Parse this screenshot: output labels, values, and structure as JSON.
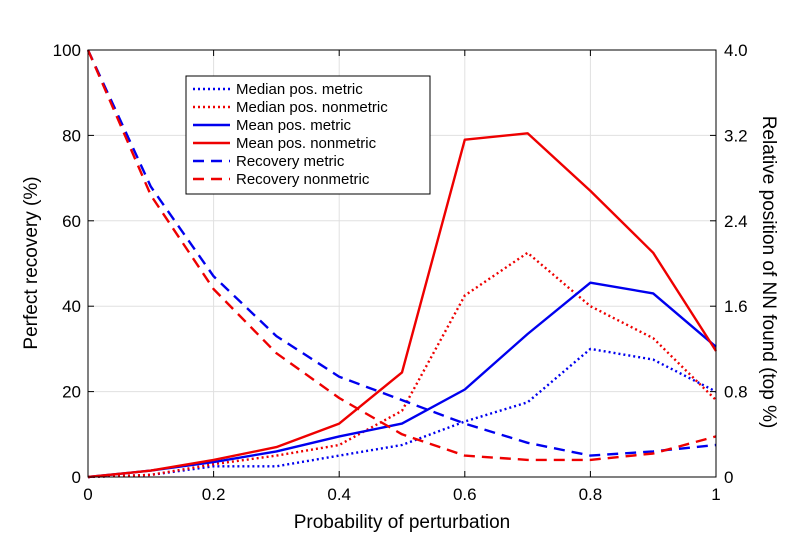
{
  "chart_data": {
    "type": "line",
    "title": "",
    "xlabel": "Probability of perturbation",
    "ylabel": "Perfect recovery (%)",
    "ylabel_right": "Relative position of NN found (top %)",
    "xlim": [
      0,
      1
    ],
    "ylim": [
      0,
      100
    ],
    "ylim_right": [
      0,
      4.0
    ],
    "grid": true,
    "legend_position": "top-left",
    "x_ticks": [
      "0",
      "0.2",
      "0.4",
      "0.6",
      "0.8",
      "1"
    ],
    "y_ticks": [
      "0",
      "20",
      "40",
      "60",
      "80",
      "100"
    ],
    "y_ticks_right": [
      "0",
      "0.8",
      "1.6",
      "2.4",
      "3.2",
      "4.0"
    ],
    "x": [
      0,
      0.1,
      0.2,
      0.3,
      0.4,
      0.5,
      0.6,
      0.7,
      0.8,
      0.9,
      1.0
    ],
    "series": [
      {
        "name": "Median pos. metric",
        "axis": "right",
        "color": "#0000ee",
        "style": "dotted",
        "values": [
          0,
          0.02,
          0.1,
          0.1,
          0.2,
          0.3,
          0.52,
          0.7,
          1.2,
          1.1,
          0.8
        ]
      },
      {
        "name": "Median pos. nonmetric",
        "axis": "right",
        "color": "#ee0000",
        "style": "dotted",
        "values": [
          0,
          0.02,
          0.12,
          0.2,
          0.3,
          0.62,
          1.7,
          2.1,
          1.6,
          1.3,
          0.72
        ]
      },
      {
        "name": "Mean pos. metric",
        "axis": "right",
        "color": "#0000ee",
        "style": "solid",
        "values": [
          0,
          0.06,
          0.14,
          0.24,
          0.38,
          0.5,
          0.82,
          1.34,
          1.82,
          1.72,
          1.22
        ]
      },
      {
        "name": "Mean pos. nonmetric",
        "axis": "right",
        "color": "#ee0000",
        "style": "solid",
        "values": [
          0,
          0.06,
          0.16,
          0.28,
          0.5,
          0.98,
          3.16,
          3.22,
          2.68,
          2.1,
          1.18
        ]
      },
      {
        "name": "Recovery metric",
        "axis": "left",
        "color": "#0000ee",
        "style": "dashed",
        "values": [
          100,
          68,
          47,
          33,
          23.5,
          18,
          12.5,
          8,
          5,
          6,
          7.5
        ]
      },
      {
        "name": "Recovery nonmetric",
        "axis": "left",
        "color": "#ee0000",
        "style": "dashed",
        "values": [
          100,
          66,
          44,
          29,
          18.5,
          10,
          5,
          4,
          4,
          5.5,
          9.5
        ]
      }
    ]
  }
}
